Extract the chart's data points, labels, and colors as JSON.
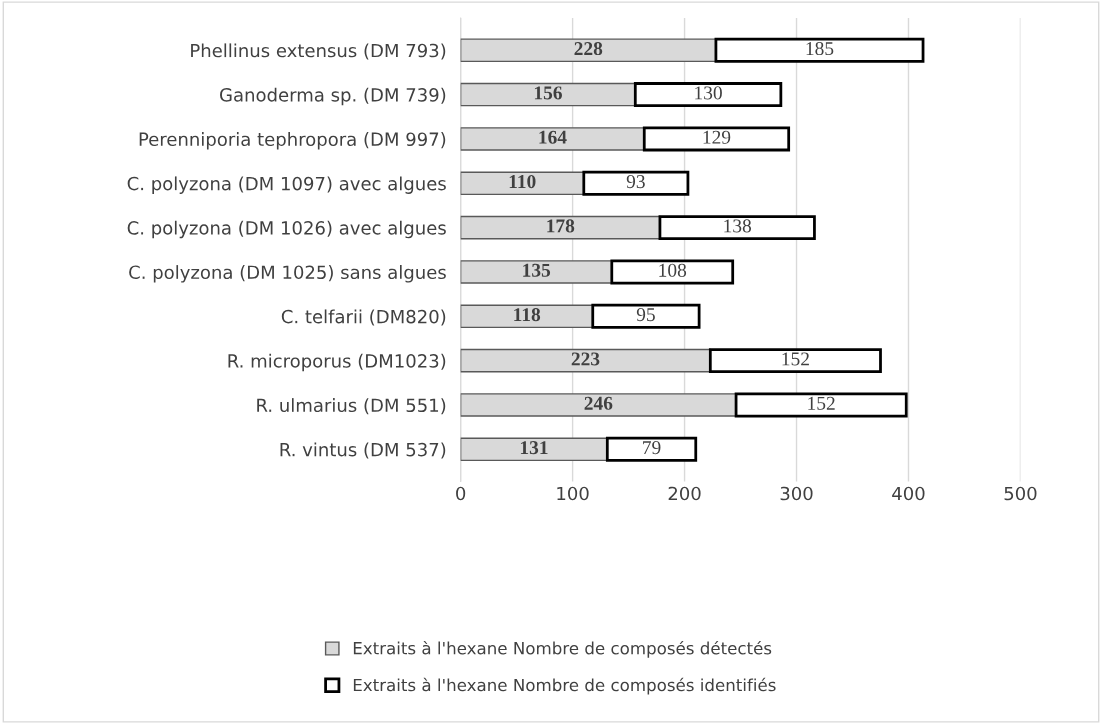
{
  "chart_data": {
    "type": "bar",
    "orientation": "horizontal",
    "stacked": true,
    "categories": [
      "Phellinus extensus (DM 793)",
      "Ganoderma sp. (DM 739)",
      "Perenniporia tephropora (DM 997)",
      "C. polyzona (DM 1097) avec algues",
      "C. polyzona (DM 1026) avec algues",
      "C. polyzona (DM 1025) sans algues",
      "C. telfarii (DM820)",
      "R. microporus (DM1023)",
      "R. ulmarius (DM 551)",
      "R. vintus (DM 537)"
    ],
    "series": [
      {
        "name": "Extraits à l'hexane Nombre de composés détectés",
        "color": "#d9d9d9",
        "values": [
          228,
          156,
          164,
          110,
          178,
          135,
          118,
          223,
          246,
          131
        ]
      },
      {
        "name": "Extraits à l'hexane Nombre de composés identifiés",
        "color": "#ffffff",
        "values": [
          185,
          130,
          129,
          93,
          138,
          108,
          95,
          152,
          152,
          79
        ]
      }
    ],
    "xlim": [
      0,
      500
    ],
    "xticks": [
      0,
      100,
      200,
      300,
      400,
      500
    ],
    "grid": "x",
    "legend": "bottom",
    "data_labels": true
  }
}
